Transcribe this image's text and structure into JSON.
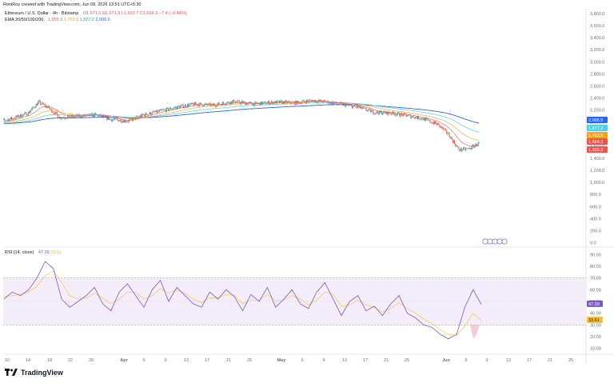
{
  "attribution": "RoniRoy created with TradingView.com, Jun 08, 2026 13:51 UTC+5:30",
  "legend": {
    "symbol": "Ethereum / U.S. Dollar · 4h · Bitstamp",
    "open": "O1,671.0",
    "high": "H1,671.9",
    "low": "L1,663.7",
    "close": "C1,664.3",
    "change": "−7.4 (−0.44%)",
    "ema_label": "EMA 20/50/100/200",
    "ema20": "1,655.3",
    "ema50": "1,763.5",
    "ema100": "1,877.2",
    "ema200": "2,006.5",
    "rsi_label": "RSI (14, close)",
    "rsi_value": "47.39",
    "rsi_ma": "33.61"
  },
  "logo": "TradingView",
  "colors": {
    "candle_up": "#26a69a",
    "candle_down": "#ef5350",
    "ema20": "#ef5350",
    "ema50": "#f7a21b",
    "ema100": "#4dd0e1",
    "ema200": "#2962ff",
    "rsi": "#7e57c2",
    "rsi_ma": "#fbc02d",
    "rsi_band": "#ede7f6"
  },
  "chart_data": [
    {
      "type": "candlestick",
      "title": "Ethereum / U.S. Dollar · 4h · Bitstamp",
      "y_ticks": [
        "3,800.0",
        "3,600.0",
        "3,400.0",
        "3,200.0",
        "3,000.0",
        "2,800.0",
        "2,600.0",
        "2,400.0",
        "2,200.0",
        "2,000.0",
        "1,800.0",
        "1,600.0",
        "1,400.0",
        "1,200.0",
        "1,000.0",
        "800.0",
        "600.0",
        "400.0",
        "200.0",
        "0.0"
      ],
      "y_tick_values": [
        3800,
        3600,
        3400,
        3200,
        3000,
        2800,
        2600,
        2400,
        2200,
        2000,
        1800,
        1600,
        1400,
        1200,
        1000,
        800,
        600,
        400,
        200,
        0
      ],
      "ylim": [
        0,
        3900
      ],
      "x_ticks": [
        "10",
        "14",
        "18",
        "22",
        "26",
        "Apr",
        "5",
        "9",
        "13",
        "17",
        "21",
        "25",
        "May",
        "5",
        "9",
        "13",
        "17",
        "21",
        "25",
        "Jun",
        "5",
        "9",
        "13",
        "17",
        "21",
        "25"
      ],
      "close_path": [
        {
          "x": "Mar 08",
          "y": 2000
        },
        {
          "x": "Mar 11",
          "y": 2060
        },
        {
          "x": "Mar 14",
          "y": 2150
        },
        {
          "x": "Mar 16",
          "y": 2330
        },
        {
          "x": "Mar 18",
          "y": 2230
        },
        {
          "x": "Mar 20",
          "y": 2080
        },
        {
          "x": "Mar 24",
          "y": 2100
        },
        {
          "x": "Mar 27",
          "y": 2120
        },
        {
          "x": "Mar 30",
          "y": 2040
        },
        {
          "x": "Apr 02",
          "y": 2020
        },
        {
          "x": "Apr 05",
          "y": 2120
        },
        {
          "x": "Apr 08",
          "y": 2180
        },
        {
          "x": "Apr 12",
          "y": 2260
        },
        {
          "x": "Apr 15",
          "y": 2300
        },
        {
          "x": "Apr 18",
          "y": 2280
        },
        {
          "x": "Apr 22",
          "y": 2340
        },
        {
          "x": "Apr 26",
          "y": 2300
        },
        {
          "x": "Apr 30",
          "y": 2330
        },
        {
          "x": "May 04",
          "y": 2320
        },
        {
          "x": "May 07",
          "y": 2360
        },
        {
          "x": "May 10",
          "y": 2330
        },
        {
          "x": "May 13",
          "y": 2290
        },
        {
          "x": "May 16",
          "y": 2240
        },
        {
          "x": "May 19",
          "y": 2160
        },
        {
          "x": "May 22",
          "y": 2150
        },
        {
          "x": "May 25",
          "y": 2110
        },
        {
          "x": "May 28",
          "y": 2060
        },
        {
          "x": "May 31",
          "y": 1960
        },
        {
          "x": "Jun 02",
          "y": 1800
        },
        {
          "x": "Jun 04",
          "y": 1540
        },
        {
          "x": "Jun 06",
          "y": 1560
        },
        {
          "x": "Jun 08",
          "y": 1664.3
        }
      ],
      "series": [
        {
          "name": "EMA 20",
          "last": 1655.3
        },
        {
          "name": "EMA 50",
          "last": 1763.5
        },
        {
          "name": "EMA 100",
          "last": 1877.2
        },
        {
          "name": "EMA 200",
          "last": 2006.5
        }
      ],
      "price_labels": [
        "2,006.5",
        "1,877.2",
        "1,763.5",
        "1,664.3",
        "1,655.3"
      ]
    },
    {
      "type": "line",
      "title": "RSI (14, close)",
      "y_ticks": [
        "90.00",
        "80.00",
        "70.00",
        "60.00",
        "50.00",
        "40.00",
        "30.00",
        "20.00",
        "10.00"
      ],
      "y_tick_values": [
        90,
        80,
        70,
        60,
        50,
        40,
        30,
        20,
        10
      ],
      "ylim": [
        5,
        95
      ],
      "band": [
        30,
        70
      ],
      "series": [
        {
          "name": "RSI",
          "last": 47.39,
          "values": [
            52,
            58,
            55,
            60,
            70,
            84,
            78,
            52,
            45,
            50,
            55,
            62,
            48,
            42,
            58,
            65,
            55,
            45,
            60,
            68,
            50,
            62,
            55,
            48,
            45,
            58,
            52,
            60,
            54,
            42,
            56,
            50,
            62,
            45,
            52,
            60,
            48,
            44,
            58,
            66,
            52,
            38,
            50,
            55,
            42,
            46,
            38,
            48,
            55,
            40,
            36,
            30,
            28,
            22,
            18,
            22,
            45,
            60,
            47.39
          ]
        },
        {
          "name": "RSI MA",
          "last": 33.61,
          "values": [
            54,
            55,
            56,
            58,
            63,
            72,
            76,
            66,
            55,
            52,
            53,
            57,
            53,
            48,
            52,
            58,
            58,
            52,
            55,
            61,
            57,
            60,
            57,
            52,
            49,
            53,
            53,
            56,
            55,
            48,
            51,
            51,
            56,
            51,
            51,
            55,
            52,
            47,
            51,
            58,
            56,
            46,
            47,
            51,
            47,
            45,
            41,
            44,
            49,
            44,
            40,
            35,
            31,
            26,
            22,
            21,
            29,
            40,
            33.61
          ]
        }
      ],
      "price_labels": [
        "47.39",
        "33.61"
      ]
    }
  ]
}
